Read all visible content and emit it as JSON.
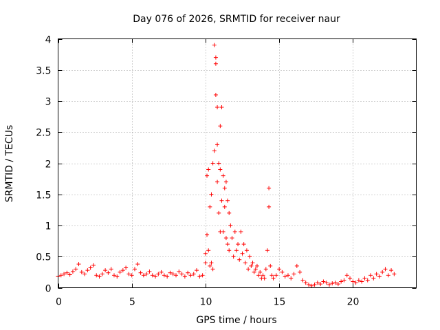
{
  "chart_data": {
    "type": "scatter",
    "title": "Day 076 of 2026, SRMTID for receiver naur",
    "xlabel": "GPS time / hours",
    "ylabel": "SRMTID / TECUs",
    "xlim": [
      0,
      24.3
    ],
    "ylim": [
      0,
      4
    ],
    "xticks": [
      0,
      5,
      10,
      15,
      20
    ],
    "yticks": [
      0,
      0.5,
      1,
      1.5,
      2,
      2.5,
      3,
      3.5,
      4
    ],
    "xtick_labels": [
      "0",
      "5",
      "10",
      "15",
      "20"
    ],
    "ytick_labels": [
      "0",
      "0.5",
      "1",
      "1.5",
      "2",
      "2.5",
      "3",
      "3.5",
      "4"
    ],
    "grid": true,
    "marker": "+",
    "series": [
      {
        "name": "SRMTID",
        "color": "#ff0000",
        "x": [
          0.0,
          0.2,
          0.4,
          0.6,
          0.8,
          1.0,
          1.2,
          1.4,
          1.6,
          1.8,
          2.0,
          2.2,
          2.4,
          2.6,
          2.8,
          3.0,
          3.2,
          3.4,
          3.6,
          3.8,
          4.0,
          4.2,
          4.4,
          4.6,
          4.8,
          5.0,
          5.2,
          5.4,
          5.6,
          5.8,
          6.0,
          6.2,
          6.4,
          6.6,
          6.8,
          7.0,
          7.2,
          7.4,
          7.6,
          7.8,
          8.0,
          8.2,
          8.4,
          8.6,
          8.8,
          9.0,
          9.2,
          9.4,
          9.6,
          9.8,
          10.0,
          10.0,
          10.1,
          10.1,
          10.2,
          10.2,
          10.3,
          10.3,
          10.4,
          10.4,
          10.5,
          10.5,
          10.6,
          10.6,
          10.7,
          10.7,
          10.7,
          10.8,
          10.8,
          10.8,
          10.9,
          10.9,
          11.0,
          11.0,
          11.0,
          11.1,
          11.1,
          11.2,
          11.2,
          11.3,
          11.3,
          11.4,
          11.4,
          11.5,
          11.5,
          11.6,
          11.6,
          11.7,
          11.8,
          11.9,
          12.0,
          12.1,
          12.2,
          12.3,
          12.4,
          12.5,
          12.6,
          12.7,
          12.8,
          12.9,
          13.0,
          13.1,
          13.2,
          13.3,
          13.4,
          13.5,
          13.6,
          13.7,
          13.8,
          13.9,
          14.0,
          14.1,
          14.2,
          14.3,
          14.3,
          14.4,
          14.5,
          14.6,
          14.8,
          15.0,
          15.2,
          15.4,
          15.6,
          15.8,
          16.0,
          16.2,
          16.4,
          16.6,
          16.8,
          17.0,
          17.2,
          17.4,
          17.6,
          17.8,
          18.0,
          18.2,
          18.4,
          18.6,
          18.8,
          19.0,
          19.2,
          19.4,
          19.6,
          19.8,
          20.0,
          20.2,
          20.4,
          20.6,
          20.8,
          21.0,
          21.2,
          21.4,
          21.6,
          21.8,
          22.0,
          22.2,
          22.4,
          22.6,
          22.8
        ],
        "y": [
          0.18,
          0.2,
          0.22,
          0.24,
          0.21,
          0.26,
          0.3,
          0.38,
          0.25,
          0.22,
          0.28,
          0.32,
          0.36,
          0.2,
          0.18,
          0.22,
          0.28,
          0.24,
          0.3,
          0.2,
          0.18,
          0.25,
          0.28,
          0.32,
          0.22,
          0.2,
          0.3,
          0.38,
          0.24,
          0.2,
          0.22,
          0.26,
          0.2,
          0.18,
          0.22,
          0.25,
          0.2,
          0.18,
          0.24,
          0.22,
          0.2,
          0.26,
          0.22,
          0.18,
          0.24,
          0.2,
          0.22,
          0.28,
          0.18,
          0.2,
          0.4,
          0.55,
          0.85,
          1.8,
          1.9,
          0.6,
          1.3,
          0.35,
          0.4,
          1.5,
          2.0,
          0.3,
          2.2,
          3.9,
          3.7,
          3.6,
          3.1,
          2.9,
          2.3,
          1.7,
          2.0,
          1.2,
          2.6,
          1.9,
          0.9,
          2.9,
          1.4,
          1.8,
          0.9,
          1.3,
          1.6,
          1.7,
          0.8,
          1.4,
          0.7,
          1.2,
          0.6,
          1.0,
          0.8,
          0.5,
          0.9,
          0.6,
          0.7,
          0.45,
          0.9,
          0.55,
          0.7,
          0.4,
          0.6,
          0.3,
          0.5,
          0.35,
          0.4,
          0.25,
          0.3,
          0.35,
          0.2,
          0.25,
          0.15,
          0.2,
          0.15,
          0.3,
          0.6,
          1.6,
          1.3,
          0.35,
          0.2,
          0.15,
          0.2,
          0.3,
          0.25,
          0.18,
          0.2,
          0.15,
          0.22,
          0.35,
          0.25,
          0.12,
          0.08,
          0.05,
          0.03,
          0.05,
          0.08,
          0.06,
          0.1,
          0.08,
          0.05,
          0.07,
          0.08,
          0.06,
          0.1,
          0.12,
          0.2,
          0.15,
          0.1,
          0.08,
          0.12,
          0.1,
          0.15,
          0.12,
          0.2,
          0.15,
          0.22,
          0.18,
          0.25,
          0.3,
          0.2,
          0.28,
          0.22
        ]
      }
    ]
  }
}
